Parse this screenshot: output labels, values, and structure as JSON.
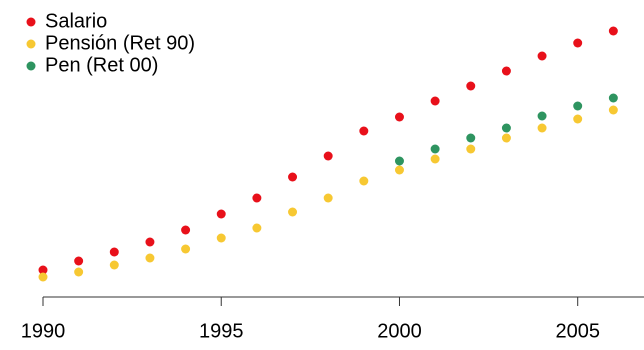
{
  "chart_data": {
    "type": "scatter",
    "x": [
      1990,
      1991,
      1992,
      1993,
      1994,
      1995,
      1996,
      1997,
      1998,
      1999,
      2000,
      2001,
      2002,
      2003,
      2004,
      2005,
      2006
    ],
    "series": [
      {
        "name": "Salario",
        "color": "#e8101a",
        "values": [
          30,
          39,
          48,
          58,
          70,
          86,
          102,
          123,
          144,
          169,
          183,
          199,
          214,
          229,
          244,
          257,
          269
        ]
      },
      {
        "name": "Pensión (Ret 90)",
        "color": "#f7c832",
        "values": [
          23,
          28,
          35,
          42,
          51,
          62,
          72,
          88,
          102,
          119,
          130,
          141,
          151,
          162,
          172,
          181,
          190
        ]
      },
      {
        "name": "Pen (Ret 00)",
        "color": "#2e9460",
        "values": [
          null,
          null,
          null,
          null,
          null,
          null,
          null,
          null,
          null,
          null,
          139,
          151,
          162,
          172,
          184,
          194,
          202
        ]
      }
    ],
    "xlim": [
      1990,
      2007
    ],
    "xticks": [
      1990,
      1995,
      2000,
      2005
    ],
    "ylim": [
      0,
      300
    ],
    "legend": "top-left"
  }
}
